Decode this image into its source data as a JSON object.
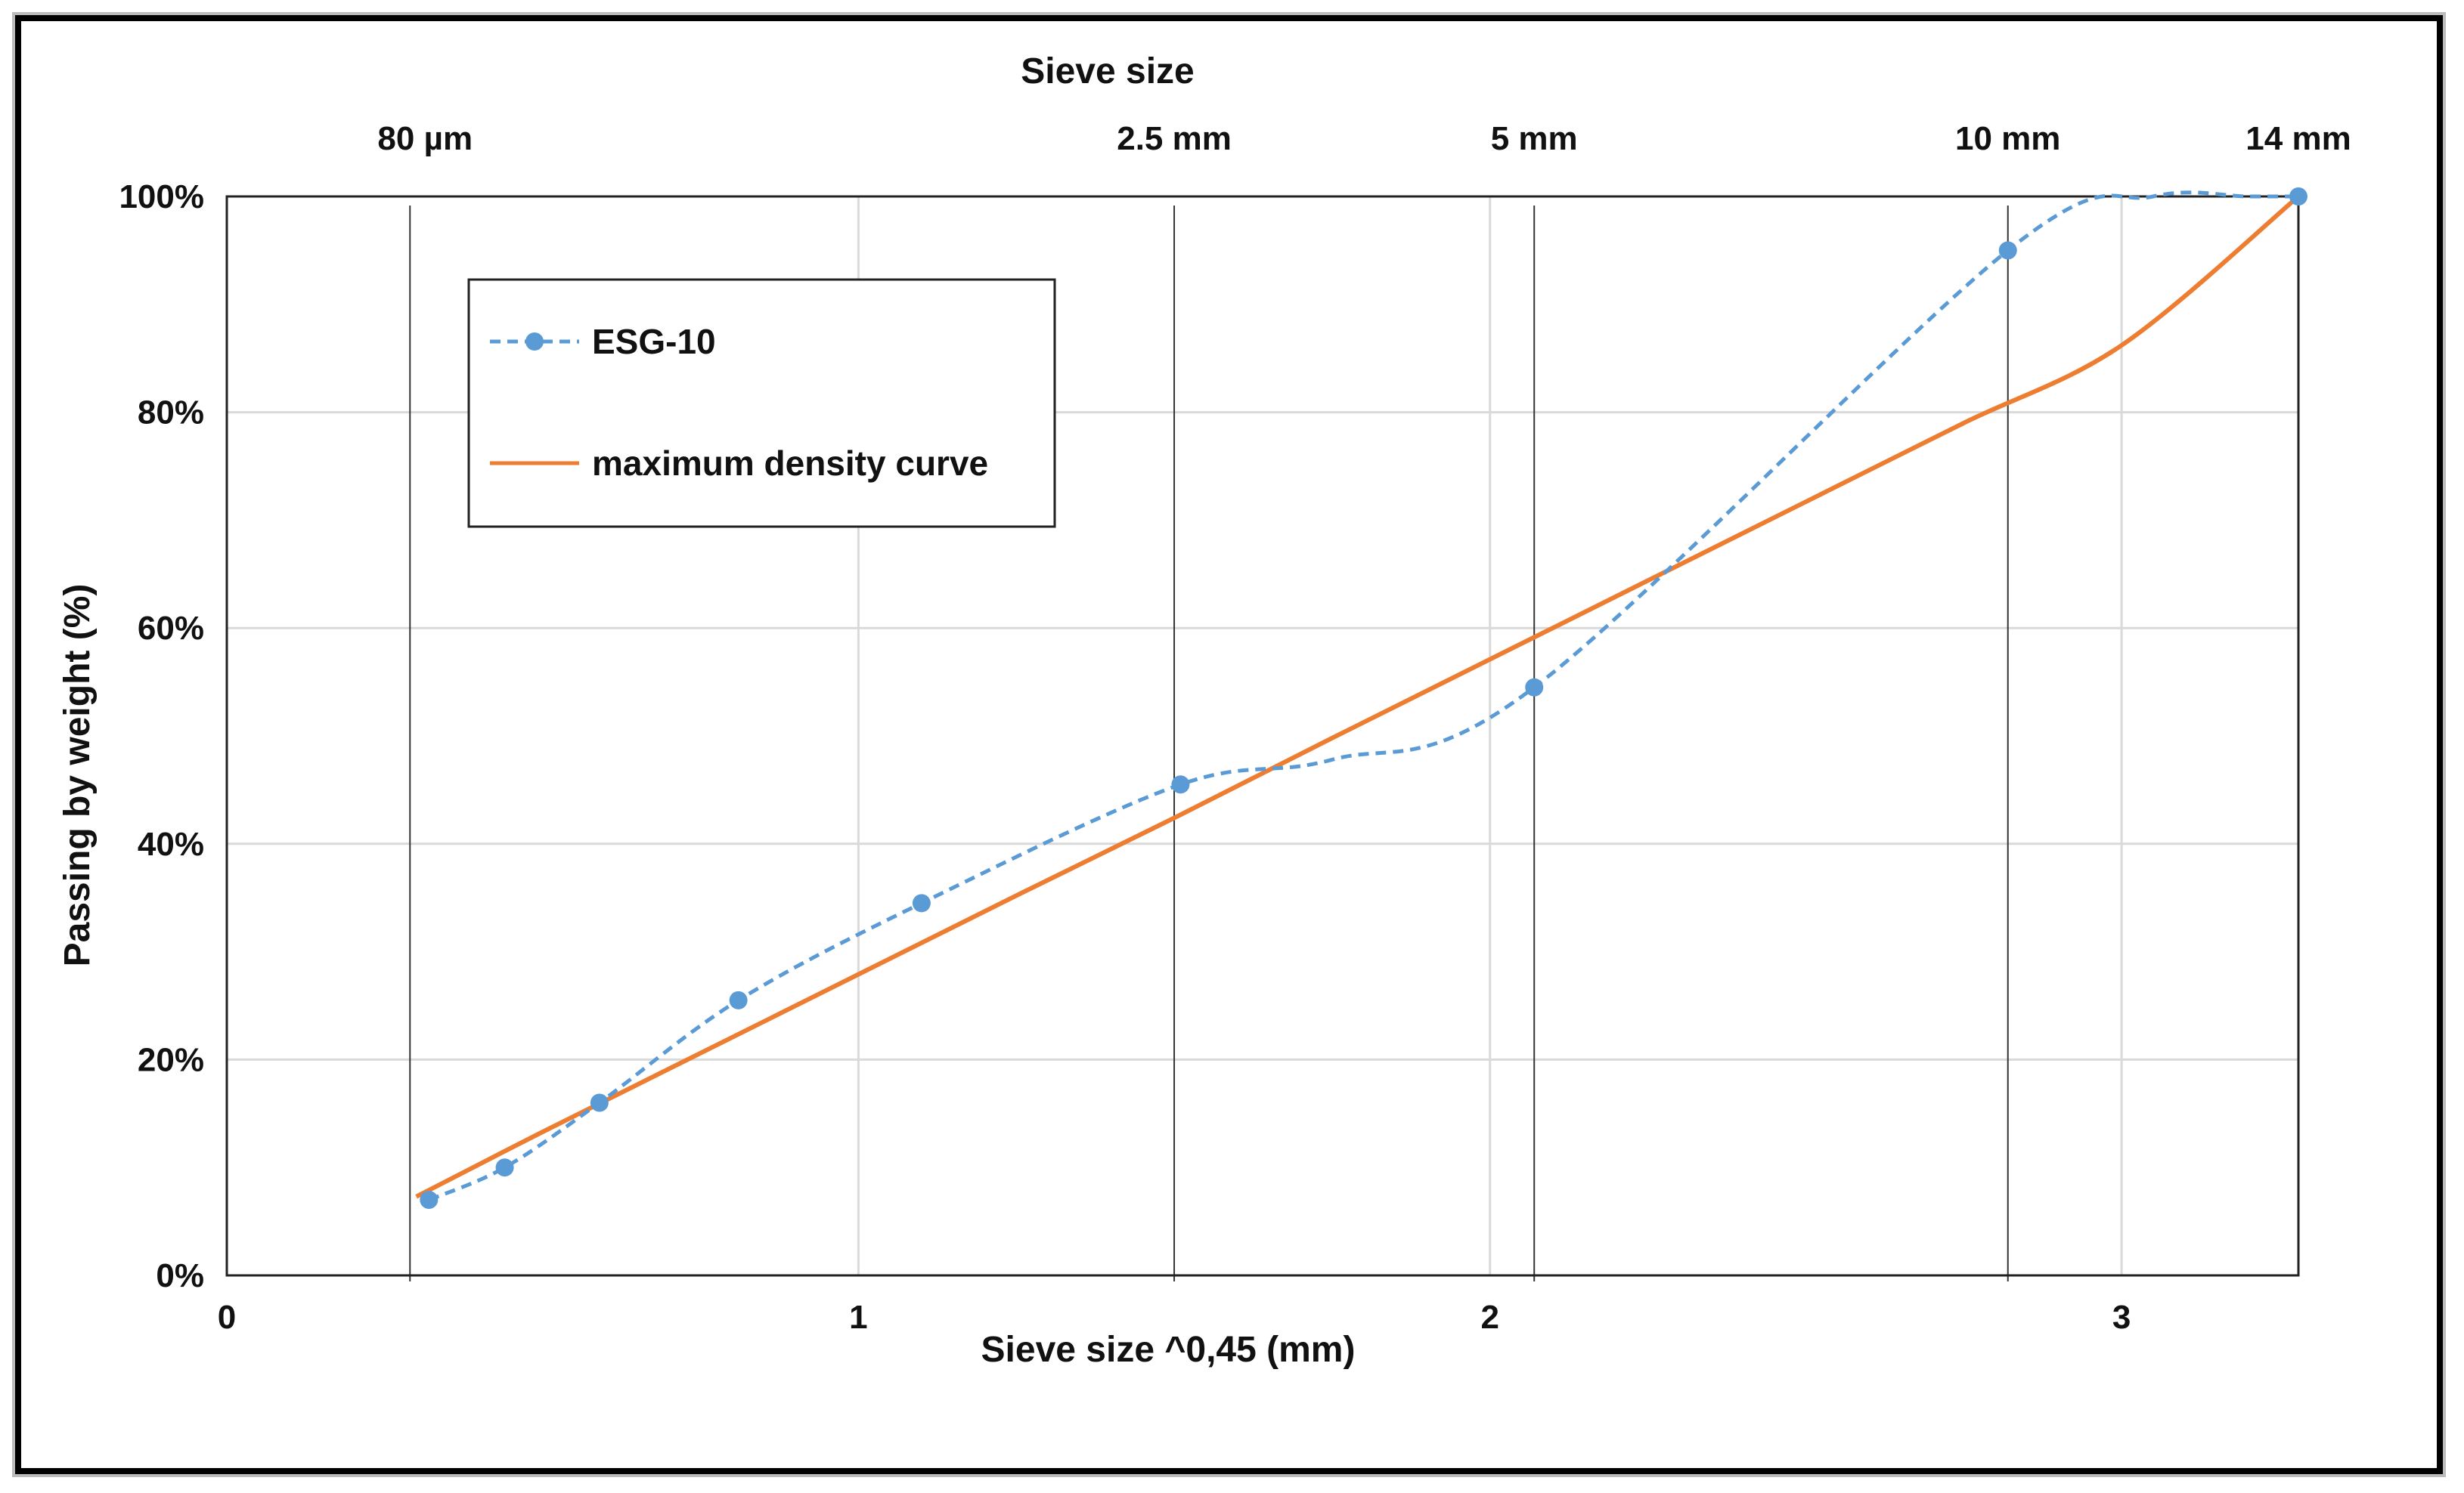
{
  "chart_data": {
    "type": "line",
    "xlabel": "Sieve size ^0,45 (mm)",
    "ylabel": "Passing by weight (%)",
    "top_axis_title": "Sieve size",
    "xlim": [
      0,
      3.28
    ],
    "ylim": [
      0,
      100
    ],
    "x_ticks": [
      {
        "value": 0,
        "label": "0"
      },
      {
        "value": 1,
        "label": "1"
      },
      {
        "value": 2,
        "label": "2"
      },
      {
        "value": 3,
        "label": "3"
      }
    ],
    "y_ticks": [
      {
        "value": 0,
        "label": "0%"
      },
      {
        "value": 20,
        "label": "20%"
      },
      {
        "value": 40,
        "label": "40%"
      },
      {
        "value": 60,
        "label": "60%"
      },
      {
        "value": 80,
        "label": "80%"
      },
      {
        "value": 100,
        "label": "100%"
      }
    ],
    "sieve_markers": [
      {
        "label": "80 µm",
        "x": 0.29
      },
      {
        "label": "2.5 mm",
        "x": 1.5
      },
      {
        "label": "5 mm",
        "x": 2.07
      },
      {
        "label": "10 mm",
        "x": 2.82
      },
      {
        "label": "14 mm",
        "x": 3.28
      }
    ],
    "grid": true,
    "legend_position": "top-left",
    "series": [
      {
        "name": "ESG-10",
        "color": "#5B9BD5",
        "style": "dashed-smooth-with-markers",
        "x": [
          0.32,
          0.44,
          0.59,
          0.81,
          1.1,
          1.51,
          2.07,
          2.82,
          3.28
        ],
        "y": [
          7,
          10,
          16,
          25.5,
          34.5,
          45.5,
          54.5,
          95,
          100
        ],
        "control_points": [
          {
            "x": 1.75,
            "y": 47.8
          },
          {
            "x": 3.05,
            "y": 100
          },
          {
            "x": 3.2,
            "y": 100
          }
        ]
      },
      {
        "name": "maximum density curve",
        "color": "#ED7D31",
        "style": "solid",
        "x": [
          0.3,
          0.5,
          0.75,
          1.0,
          1.25,
          1.5,
          1.75,
          2.0,
          2.25,
          2.5,
          2.75,
          3.0,
          3.28
        ],
        "y": [
          7.3,
          13.3,
          20.6,
          27.9,
          35.2,
          42.4,
          49.8,
          57.1,
          64.4,
          71.7,
          79.0,
          86.2,
          100
        ]
      }
    ]
  }
}
